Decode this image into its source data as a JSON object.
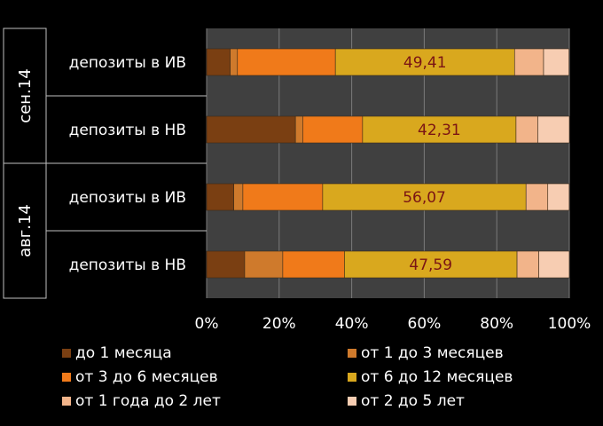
{
  "chart_data": {
    "type": "bar",
    "orientation": "horizontal",
    "stacked": "percent",
    "x_ticks": [
      "0%",
      "20%",
      "40%",
      "60%",
      "80%",
      "100%"
    ],
    "xlim": [
      0,
      100
    ],
    "grid": true,
    "legend_position": "bottom",
    "groups": [
      {
        "label": "сен.14",
        "categories": [
          "депозиты в ИВ",
          "депозиты в НВ"
        ]
      },
      {
        "label": "авг.14",
        "categories": [
          "депозиты в ИВ",
          "депозиты в НВ"
        ]
      }
    ],
    "series": [
      {
        "name": "до 1 месяца",
        "color": "#7a3f12",
        "values": [
          6.5,
          24.5,
          7.5,
          10.5
        ]
      },
      {
        "name": "от 1 до 3 месяцев",
        "color": "#cf7a2c",
        "values": [
          2,
          2,
          2.5,
          10.5
        ]
      },
      {
        "name": "от 3 до 6 месяцев",
        "color": "#f07a1a",
        "values": [
          27,
          16.5,
          22,
          17
        ]
      },
      {
        "name": "от 6 до 12 месяцев",
        "color": "#d9a81e",
        "values": [
          49.41,
          42.31,
          56.07,
          47.59
        ]
      },
      {
        "name": "от 1 года до 2 лет",
        "color": "#f2b48a",
        "values": [
          8,
          6,
          6,
          6
        ]
      },
      {
        "name": "от 2 до 5 лет",
        "color": "#f7cdb2",
        "values": [
          7,
          8.7,
          5.9,
          8.4
        ]
      }
    ],
    "data_labels": [
      "49,41",
      "42,31",
      "56,07",
      "47,59"
    ]
  }
}
